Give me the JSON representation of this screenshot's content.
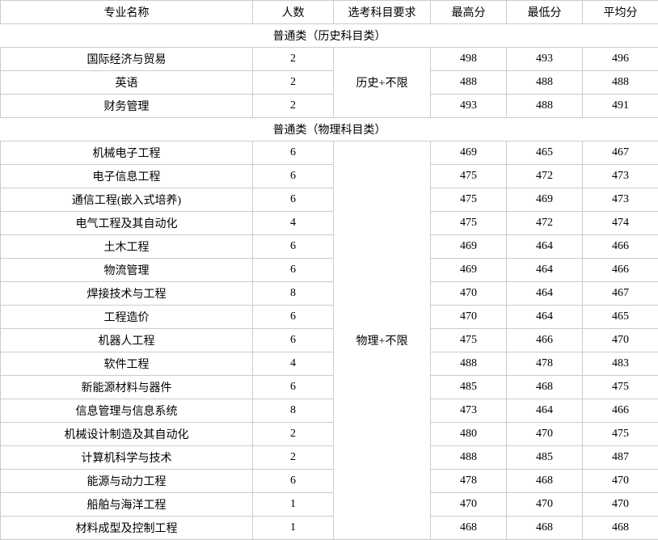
{
  "columns": {
    "name": "专业名称",
    "count": "人数",
    "req": "选考科目要求",
    "max": "最高分",
    "min": "最低分",
    "avg": "平均分"
  },
  "section1": {
    "title": "普通类（历史科目类）",
    "req": "历史+不限",
    "rows": [
      {
        "name": "国际经济与贸易",
        "count": 2,
        "max": 498,
        "min": 493,
        "avg": 496
      },
      {
        "name": "英语",
        "count": 2,
        "max": 488,
        "min": 488,
        "avg": 488
      },
      {
        "name": "财务管理",
        "count": 2,
        "max": 493,
        "min": 488,
        "avg": 491
      }
    ]
  },
  "section2": {
    "title": "普通类（物理科目类）",
    "req": "物理+不限",
    "rows": [
      {
        "name": "机械电子工程",
        "count": 6,
        "max": 469,
        "min": 465,
        "avg": 467
      },
      {
        "name": "电子信息工程",
        "count": 6,
        "max": 475,
        "min": 472,
        "avg": 473
      },
      {
        "name": "通信工程(嵌入式培养)",
        "count": 6,
        "max": 475,
        "min": 469,
        "avg": 473
      },
      {
        "name": "电气工程及其自动化",
        "count": 4,
        "max": 475,
        "min": 472,
        "avg": 474
      },
      {
        "name": "土木工程",
        "count": 6,
        "max": 469,
        "min": 464,
        "avg": 466
      },
      {
        "name": "物流管理",
        "count": 6,
        "max": 469,
        "min": 464,
        "avg": 466
      },
      {
        "name": "焊接技术与工程",
        "count": 8,
        "max": 470,
        "min": 464,
        "avg": 467
      },
      {
        "name": "工程造价",
        "count": 6,
        "max": 470,
        "min": 464,
        "avg": 465
      },
      {
        "name": "机器人工程",
        "count": 6,
        "max": 475,
        "min": 466,
        "avg": 470
      },
      {
        "name": "软件工程",
        "count": 4,
        "max": 488,
        "min": 478,
        "avg": 483
      },
      {
        "name": "新能源材料与器件",
        "count": 6,
        "max": 485,
        "min": 468,
        "avg": 475
      },
      {
        "name": "信息管理与信息系统",
        "count": 8,
        "max": 473,
        "min": 464,
        "avg": 466
      },
      {
        "name": "机械设计制造及其自动化",
        "count": 2,
        "max": 480,
        "min": 470,
        "avg": 475
      },
      {
        "name": "计算机科学与技术",
        "count": 2,
        "max": 488,
        "min": 485,
        "avg": 487
      },
      {
        "name": "能源与动力工程",
        "count": 6,
        "max": 478,
        "min": 468,
        "avg": 470
      },
      {
        "name": "船舶与海洋工程",
        "count": 1,
        "max": 470,
        "min": 470,
        "avg": 470
      },
      {
        "name": "材料成型及控制工程",
        "count": 1,
        "max": 468,
        "min": 468,
        "avg": 468
      }
    ]
  },
  "style": {
    "border_color": "#cccccc",
    "background_color": "#ffffff",
    "text_color": "#000000",
    "font_size_pt": 10.5,
    "font_family": "SimSun"
  }
}
